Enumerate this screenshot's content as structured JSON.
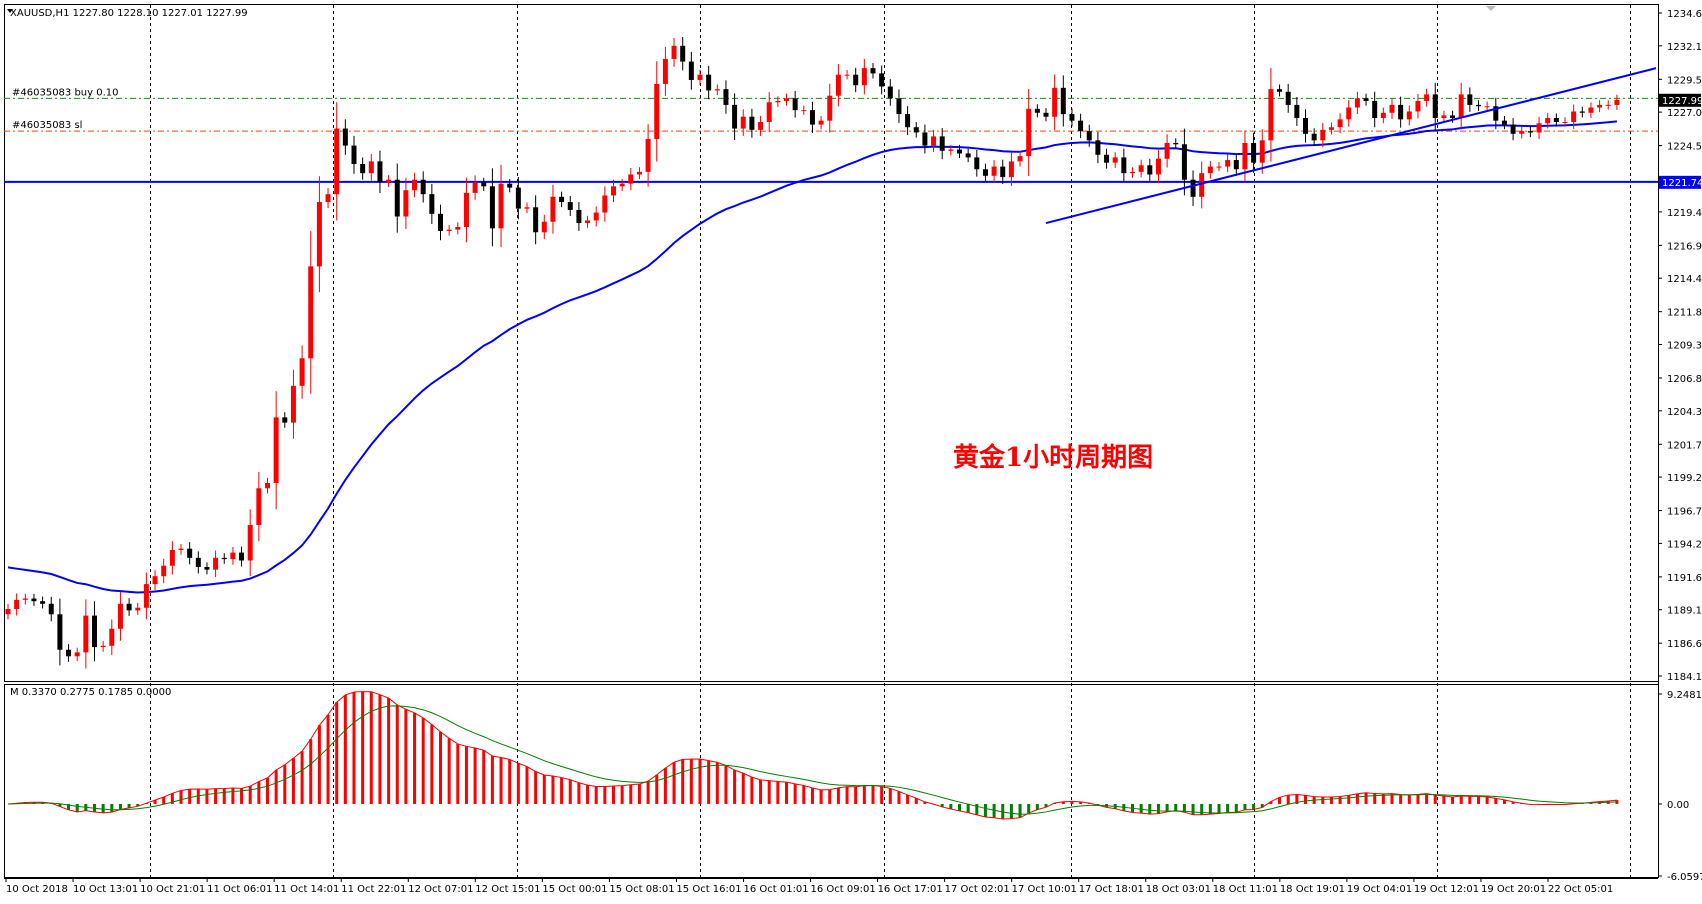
{
  "chart_data": [
    {
      "type": "candlestick",
      "symbol_header": "XAUUSD,H1  1227.80 1228.10 1227.01 1227.99",
      "ylim": [
        1184.1,
        1234.6
      ],
      "y_ticks": [
        "1234.60",
        "1232.10",
        "1229.55",
        "1227.05",
        "1224.50",
        "1221.95",
        "1219.45",
        "1216.90",
        "1214.40",
        "1211.85",
        "1209.35",
        "1206.80",
        "1204.30",
        "1201.75",
        "1199.25",
        "1196.70",
        "1194.20",
        "1191.65",
        "1189.15",
        "1186.60",
        "1184.10"
      ],
      "x_ticks": [
        "10 Oct 2018",
        "10 Oct 13:01",
        "10 Oct 21:01",
        "11 Oct 06:01",
        "11 Oct 14:01",
        "11 Oct 22:01",
        "12 Oct 07:01",
        "12 Oct 15:01",
        "15 Oct 00:01",
        "15 Oct 08:01",
        "15 Oct 16:01",
        "16 Oct 01:01",
        "16 Oct 09:01",
        "16 Oct 17:01",
        "17 Oct 02:01",
        "17 Oct 10:01",
        "17 Oct 18:01",
        "18 Oct 03:01",
        "18 Oct 11:01",
        "18 Oct 19:01",
        "19 Oct 04:01",
        "19 Oct 12:01",
        "19 Oct 20:01",
        "22 Oct 05:01"
      ],
      "annotation": "黄金1小时周期图",
      "current_price_label": "1227.99",
      "support_line_label": "1221.74",
      "support_level": 1221.74,
      "order_buy": {
        "label": "#46035083 buy 0.10",
        "price": 1228.1
      },
      "order_sl": {
        "label": "#46035083 sl",
        "price": 1225.6
      },
      "closes": [
        1189.2,
        1189.9,
        1190.0,
        1189.8,
        1189.6,
        1188.8,
        1186.1,
        1185.6,
        1185.9,
        1188.7,
        1186.3,
        1186.4,
        1187.7,
        1189.6,
        1189.1,
        1189.3,
        1191.1,
        1191.7,
        1192.5,
        1193.7,
        1193.8,
        1193.1,
        1192.4,
        1192.2,
        1193.1,
        1193.0,
        1193.5,
        1192.9,
        1195.6,
        1198.4,
        1198.8,
        1203.8,
        1203.4,
        1206.2,
        1208.3,
        1215.3,
        1220.2,
        1220.8,
        1225.8,
        1224.5,
        1223.1,
        1222.4,
        1223.3,
        1221.7,
        1221.9,
        1219.1,
        1221.1,
        1221.9,
        1220.8,
        1219.3,
        1218.0,
        1218.1,
        1218.3,
        1220.9,
        1221.7,
        1221.4,
        1218.2,
        1221.6,
        1221.3,
        1219.7,
        1219.8,
        1217.9,
        1218.7,
        1220.6,
        1220.2,
        1219.6,
        1218.6,
        1218.8,
        1219.4,
        1220.7,
        1221.4,
        1221.6,
        1222.3,
        1222.5,
        1225.0,
        1229.2,
        1231.1,
        1232.1,
        1230.9,
        1229.5,
        1229.9,
        1228.7,
        1228.8,
        1227.6,
        1225.8,
        1226.7,
        1225.7,
        1226.3,
        1227.8,
        1227.9,
        1228.1,
        1227.2,
        1227.2,
        1226.1,
        1226.4,
        1228.3,
        1229.9,
        1229.9,
        1229.1,
        1230.4,
        1230.0,
        1229.0,
        1228.1,
        1226.9,
        1225.9,
        1225.5,
        1224.5,
        1225.2,
        1224.1,
        1224.2,
        1223.9,
        1223.6,
        1222.7,
        1222.2,
        1222.9,
        1222.1,
        1223.3,
        1223.7,
        1227.3,
        1227.0,
        1226.7,
        1228.9,
        1226.9,
        1226.4,
        1225.6,
        1224.9,
        1223.8,
        1223.2,
        1223.6,
        1222.4,
        1222.5,
        1223.0,
        1222.3,
        1223.5,
        1224.7,
        1224.6,
        1221.9,
        1220.6,
        1222.4,
        1222.9,
        1222.9,
        1223.4,
        1222.7,
        1224.7,
        1223.2,
        1224.9,
        1228.8,
        1228.6,
        1227.6,
        1226.6,
        1225.4,
        1224.9,
        1225.7,
        1225.9,
        1226.5,
        1227.4,
        1228.1,
        1227.9,
        1226.6,
        1227.0,
        1227.6,
        1226.5,
        1227.1,
        1227.9,
        1228.4,
        1226.6,
        1226.8,
        1226.6,
        1228.4,
        1227.6,
        1227.5,
        1227.5,
        1226.4,
        1226.1,
        1225.4,
        1225.6,
        1225.5,
        1226.2,
        1226.6,
        1226.3,
        1226.3,
        1227.1,
        1227.0,
        1227.4,
        1227.6,
        1227.6,
        1227.99
      ],
      "oscillator": {
        "label": "M 0.3370 0.2775 0.1785 0.0000",
        "ylim": [
          -6.0597,
          9.2481
        ],
        "y_ticks": [
          "9.2481",
          "0.00",
          "-6.0597"
        ]
      }
    }
  ]
}
